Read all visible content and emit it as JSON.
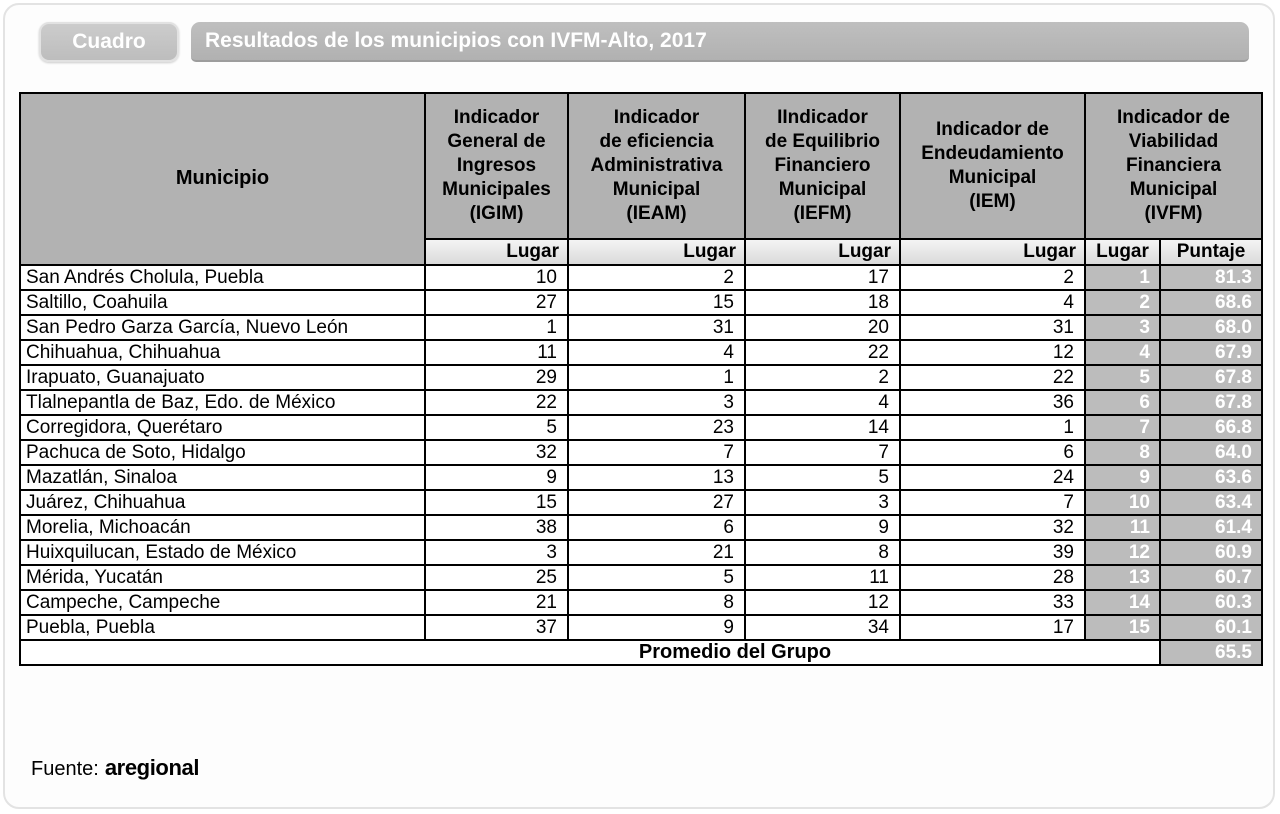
{
  "header": {
    "badge": "Cuadro",
    "title": "Resultados de los municipios con IVFM-Alto, 2017"
  },
  "table": {
    "municipio_header": "Municipio",
    "indicator_headers": [
      "Indicador\nGeneral de\nIngresos\nMunicipales\n(IGIM)",
      "Indicador\nde eficiencia\nAdministrativa\nMunicipal\n(IEAM)",
      "IIndicador\nde Equilibrio\nFinanciero\nMunicipal\n(IEFM)",
      "Indicador de\nEndeudamiento\nMunicipal\n(IEM)",
      "Indicador de\nViabilidad\nFinanciera\nMunicipal\n(IVFM)"
    ],
    "subheaders": {
      "lugar": "Lugar",
      "puntaje": "Puntaje"
    },
    "rows": [
      {
        "municipio": "San Andrés Cholula, Puebla",
        "igim": "10",
        "ieam": "2",
        "iefm": "17",
        "iem": "2",
        "ivfm_lugar": "1",
        "ivfm_puntaje": "81.3"
      },
      {
        "municipio": "Saltillo, Coahuila",
        "igim": "27",
        "ieam": "15",
        "iefm": "18",
        "iem": "4",
        "ivfm_lugar": "2",
        "ivfm_puntaje": "68.6"
      },
      {
        "municipio": "San Pedro Garza García, Nuevo León",
        "igim": "1",
        "ieam": "31",
        "iefm": "20",
        "iem": "31",
        "ivfm_lugar": "3",
        "ivfm_puntaje": "68.0"
      },
      {
        "municipio": "Chihuahua, Chihuahua",
        "igim": "11",
        "ieam": "4",
        "iefm": "22",
        "iem": "12",
        "ivfm_lugar": "4",
        "ivfm_puntaje": "67.9"
      },
      {
        "municipio": "Irapuato, Guanajuato",
        "igim": "29",
        "ieam": "1",
        "iefm": "2",
        "iem": "22",
        "ivfm_lugar": "5",
        "ivfm_puntaje": "67.8"
      },
      {
        "municipio": "Tlalnepantla de Baz, Edo. de México",
        "igim": "22",
        "ieam": "3",
        "iefm": "4",
        "iem": "36",
        "ivfm_lugar": "6",
        "ivfm_puntaje": "67.8"
      },
      {
        "municipio": "Corregidora, Querétaro",
        "igim": "5",
        "ieam": "23",
        "iefm": "14",
        "iem": "1",
        "ivfm_lugar": "7",
        "ivfm_puntaje": "66.8"
      },
      {
        "municipio": "Pachuca de Soto, Hidalgo",
        "igim": "32",
        "ieam": "7",
        "iefm": "7",
        "iem": "6",
        "ivfm_lugar": "8",
        "ivfm_puntaje": "64.0"
      },
      {
        "municipio": "Mazatlán, Sinaloa",
        "igim": "9",
        "ieam": "13",
        "iefm": "5",
        "iem": "24",
        "ivfm_lugar": "9",
        "ivfm_puntaje": "63.6"
      },
      {
        "municipio": "Juárez, Chihuahua",
        "igim": "15",
        "ieam": "27",
        "iefm": "3",
        "iem": "7",
        "ivfm_lugar": "10",
        "ivfm_puntaje": "63.4"
      },
      {
        "municipio": "Morelia, Michoacán",
        "igim": "38",
        "ieam": "6",
        "iefm": "9",
        "iem": "32",
        "ivfm_lugar": "11",
        "ivfm_puntaje": "61.4"
      },
      {
        "municipio": "Huixquilucan, Estado de México",
        "igim": "3",
        "ieam": "21",
        "iefm": "8",
        "iem": "39",
        "ivfm_lugar": "12",
        "ivfm_puntaje": "60.9"
      },
      {
        "municipio": "Mérida, Yucatán",
        "igim": "25",
        "ieam": "5",
        "iefm": "11",
        "iem": "28",
        "ivfm_lugar": "13",
        "ivfm_puntaje": "60.7"
      },
      {
        "municipio": "Campeche, Campeche",
        "igim": "21",
        "ieam": "8",
        "iefm": "12",
        "iem": "33",
        "ivfm_lugar": "14",
        "ivfm_puntaje": "60.3"
      },
      {
        "municipio": "Puebla, Puebla",
        "igim": "37",
        "ieam": "9",
        "iefm": "34",
        "iem": "17",
        "ivfm_lugar": "15",
        "ivfm_puntaje": "60.1"
      }
    ],
    "footer_row": {
      "label": "Promedio del Grupo",
      "puntaje": "65.5"
    }
  },
  "footer": {
    "label": "Fuente:",
    "source": "aregional"
  },
  "colors": {
    "header_gray": "#b2b2b2",
    "subheader_gray": "#e6e6e6",
    "highlight_gray": "#bcbcbc",
    "title_bar_gray": "#b5b5b5",
    "text_on_gray": "#ffffff"
  }
}
